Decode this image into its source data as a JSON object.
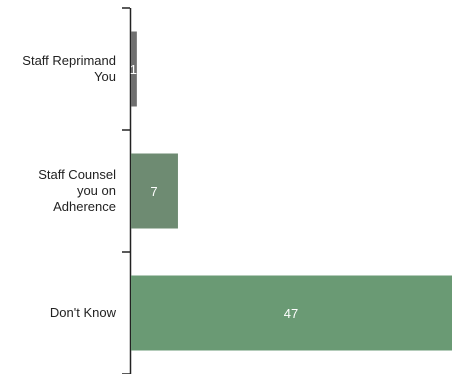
{
  "chart_data": {
    "type": "bar",
    "orientation": "horizontal",
    "categories": [
      "Staff Reprimand You",
      "Staff Counsel you on Adherence",
      "Don't Know"
    ],
    "category_lines": [
      [
        "Staff Reprimand",
        "You"
      ],
      [
        "Staff Counsel",
        "you on",
        "Adherence"
      ],
      [
        "Don't Know"
      ]
    ],
    "values": [
      1,
      7,
      47
    ],
    "colors": [
      "#6f6f6f",
      "#6e8b72",
      "#6a9a74"
    ],
    "value_label_color": "#ffffff",
    "xlim": [
      0,
      47
    ],
    "grid": false,
    "title": "",
    "xlabel": "",
    "ylabel": ""
  }
}
